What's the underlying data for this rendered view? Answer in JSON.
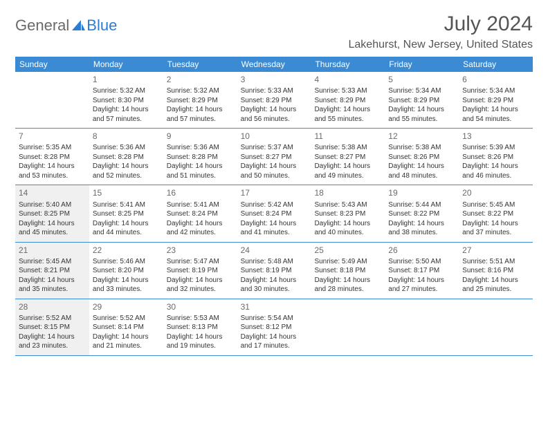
{
  "logo": {
    "text_a": "General",
    "text_b": "Blue"
  },
  "title": "July 2024",
  "location": "Lakehurst, New Jersey, United States",
  "colors": {
    "header_bg": "#3b8bd4",
    "header_text": "#ffffff",
    "rule": "#3b8bd4",
    "shaded_bg": "#f0f0f0",
    "body_text": "#333333",
    "muted_text": "#6a6a6a"
  },
  "day_names": [
    "Sunday",
    "Monday",
    "Tuesday",
    "Wednesday",
    "Thursday",
    "Friday",
    "Saturday"
  ],
  "weeks": [
    [
      {
        "day": "",
        "sunrise": "",
        "sunset": "",
        "daylight_a": "",
        "daylight_b": "",
        "shaded": false
      },
      {
        "day": "1",
        "sunrise": "Sunrise: 5:32 AM",
        "sunset": "Sunset: 8:30 PM",
        "daylight_a": "Daylight: 14 hours",
        "daylight_b": "and 57 minutes.",
        "shaded": false
      },
      {
        "day": "2",
        "sunrise": "Sunrise: 5:32 AM",
        "sunset": "Sunset: 8:29 PM",
        "daylight_a": "Daylight: 14 hours",
        "daylight_b": "and 57 minutes.",
        "shaded": false
      },
      {
        "day": "3",
        "sunrise": "Sunrise: 5:33 AM",
        "sunset": "Sunset: 8:29 PM",
        "daylight_a": "Daylight: 14 hours",
        "daylight_b": "and 56 minutes.",
        "shaded": false
      },
      {
        "day": "4",
        "sunrise": "Sunrise: 5:33 AM",
        "sunset": "Sunset: 8:29 PM",
        "daylight_a": "Daylight: 14 hours",
        "daylight_b": "and 55 minutes.",
        "shaded": false
      },
      {
        "day": "5",
        "sunrise": "Sunrise: 5:34 AM",
        "sunset": "Sunset: 8:29 PM",
        "daylight_a": "Daylight: 14 hours",
        "daylight_b": "and 55 minutes.",
        "shaded": false
      },
      {
        "day": "6",
        "sunrise": "Sunrise: 5:34 AM",
        "sunset": "Sunset: 8:29 PM",
        "daylight_a": "Daylight: 14 hours",
        "daylight_b": "and 54 minutes.",
        "shaded": false
      }
    ],
    [
      {
        "day": "7",
        "sunrise": "Sunrise: 5:35 AM",
        "sunset": "Sunset: 8:28 PM",
        "daylight_a": "Daylight: 14 hours",
        "daylight_b": "and 53 minutes.",
        "shaded": false
      },
      {
        "day": "8",
        "sunrise": "Sunrise: 5:36 AM",
        "sunset": "Sunset: 8:28 PM",
        "daylight_a": "Daylight: 14 hours",
        "daylight_b": "and 52 minutes.",
        "shaded": false
      },
      {
        "day": "9",
        "sunrise": "Sunrise: 5:36 AM",
        "sunset": "Sunset: 8:28 PM",
        "daylight_a": "Daylight: 14 hours",
        "daylight_b": "and 51 minutes.",
        "shaded": false
      },
      {
        "day": "10",
        "sunrise": "Sunrise: 5:37 AM",
        "sunset": "Sunset: 8:27 PM",
        "daylight_a": "Daylight: 14 hours",
        "daylight_b": "and 50 minutes.",
        "shaded": false
      },
      {
        "day": "11",
        "sunrise": "Sunrise: 5:38 AM",
        "sunset": "Sunset: 8:27 PM",
        "daylight_a": "Daylight: 14 hours",
        "daylight_b": "and 49 minutes.",
        "shaded": false
      },
      {
        "day": "12",
        "sunrise": "Sunrise: 5:38 AM",
        "sunset": "Sunset: 8:26 PM",
        "daylight_a": "Daylight: 14 hours",
        "daylight_b": "and 48 minutes.",
        "shaded": false
      },
      {
        "day": "13",
        "sunrise": "Sunrise: 5:39 AM",
        "sunset": "Sunset: 8:26 PM",
        "daylight_a": "Daylight: 14 hours",
        "daylight_b": "and 46 minutes.",
        "shaded": false
      }
    ],
    [
      {
        "day": "14",
        "sunrise": "Sunrise: 5:40 AM",
        "sunset": "Sunset: 8:25 PM",
        "daylight_a": "Daylight: 14 hours",
        "daylight_b": "and 45 minutes.",
        "shaded": true
      },
      {
        "day": "15",
        "sunrise": "Sunrise: 5:41 AM",
        "sunset": "Sunset: 8:25 PM",
        "daylight_a": "Daylight: 14 hours",
        "daylight_b": "and 44 minutes.",
        "shaded": false
      },
      {
        "day": "16",
        "sunrise": "Sunrise: 5:41 AM",
        "sunset": "Sunset: 8:24 PM",
        "daylight_a": "Daylight: 14 hours",
        "daylight_b": "and 42 minutes.",
        "shaded": false
      },
      {
        "day": "17",
        "sunrise": "Sunrise: 5:42 AM",
        "sunset": "Sunset: 8:24 PM",
        "daylight_a": "Daylight: 14 hours",
        "daylight_b": "and 41 minutes.",
        "shaded": false
      },
      {
        "day": "18",
        "sunrise": "Sunrise: 5:43 AM",
        "sunset": "Sunset: 8:23 PM",
        "daylight_a": "Daylight: 14 hours",
        "daylight_b": "and 40 minutes.",
        "shaded": false
      },
      {
        "day": "19",
        "sunrise": "Sunrise: 5:44 AM",
        "sunset": "Sunset: 8:22 PM",
        "daylight_a": "Daylight: 14 hours",
        "daylight_b": "and 38 minutes.",
        "shaded": false
      },
      {
        "day": "20",
        "sunrise": "Sunrise: 5:45 AM",
        "sunset": "Sunset: 8:22 PM",
        "daylight_a": "Daylight: 14 hours",
        "daylight_b": "and 37 minutes.",
        "shaded": false
      }
    ],
    [
      {
        "day": "21",
        "sunrise": "Sunrise: 5:45 AM",
        "sunset": "Sunset: 8:21 PM",
        "daylight_a": "Daylight: 14 hours",
        "daylight_b": "and 35 minutes.",
        "shaded": true
      },
      {
        "day": "22",
        "sunrise": "Sunrise: 5:46 AM",
        "sunset": "Sunset: 8:20 PM",
        "daylight_a": "Daylight: 14 hours",
        "daylight_b": "and 33 minutes.",
        "shaded": false
      },
      {
        "day": "23",
        "sunrise": "Sunrise: 5:47 AM",
        "sunset": "Sunset: 8:19 PM",
        "daylight_a": "Daylight: 14 hours",
        "daylight_b": "and 32 minutes.",
        "shaded": false
      },
      {
        "day": "24",
        "sunrise": "Sunrise: 5:48 AM",
        "sunset": "Sunset: 8:19 PM",
        "daylight_a": "Daylight: 14 hours",
        "daylight_b": "and 30 minutes.",
        "shaded": false
      },
      {
        "day": "25",
        "sunrise": "Sunrise: 5:49 AM",
        "sunset": "Sunset: 8:18 PM",
        "daylight_a": "Daylight: 14 hours",
        "daylight_b": "and 28 minutes.",
        "shaded": false
      },
      {
        "day": "26",
        "sunrise": "Sunrise: 5:50 AM",
        "sunset": "Sunset: 8:17 PM",
        "daylight_a": "Daylight: 14 hours",
        "daylight_b": "and 27 minutes.",
        "shaded": false
      },
      {
        "day": "27",
        "sunrise": "Sunrise: 5:51 AM",
        "sunset": "Sunset: 8:16 PM",
        "daylight_a": "Daylight: 14 hours",
        "daylight_b": "and 25 minutes.",
        "shaded": false
      }
    ],
    [
      {
        "day": "28",
        "sunrise": "Sunrise: 5:52 AM",
        "sunset": "Sunset: 8:15 PM",
        "daylight_a": "Daylight: 14 hours",
        "daylight_b": "and 23 minutes.",
        "shaded": true
      },
      {
        "day": "29",
        "sunrise": "Sunrise: 5:52 AM",
        "sunset": "Sunset: 8:14 PM",
        "daylight_a": "Daylight: 14 hours",
        "daylight_b": "and 21 minutes.",
        "shaded": false
      },
      {
        "day": "30",
        "sunrise": "Sunrise: 5:53 AM",
        "sunset": "Sunset: 8:13 PM",
        "daylight_a": "Daylight: 14 hours",
        "daylight_b": "and 19 minutes.",
        "shaded": false
      },
      {
        "day": "31",
        "sunrise": "Sunrise: 5:54 AM",
        "sunset": "Sunset: 8:12 PM",
        "daylight_a": "Daylight: 14 hours",
        "daylight_b": "and 17 minutes.",
        "shaded": false
      },
      {
        "day": "",
        "sunrise": "",
        "sunset": "",
        "daylight_a": "",
        "daylight_b": "",
        "shaded": false
      },
      {
        "day": "",
        "sunrise": "",
        "sunset": "",
        "daylight_a": "",
        "daylight_b": "",
        "shaded": false
      },
      {
        "day": "",
        "sunrise": "",
        "sunset": "",
        "daylight_a": "",
        "daylight_b": "",
        "shaded": false
      }
    ]
  ]
}
